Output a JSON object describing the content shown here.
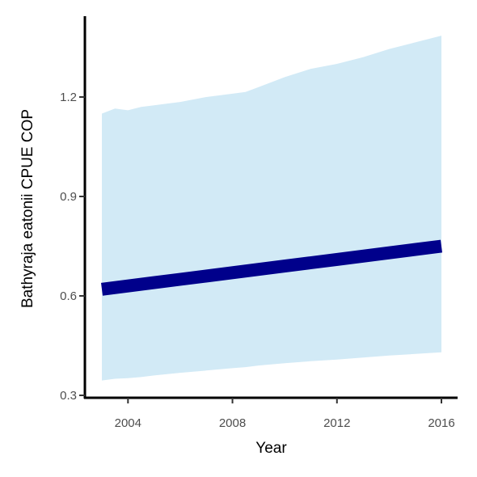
{
  "chart_data": {
    "type": "line",
    "xlabel": "Year",
    "ylabel": "Bathyraja eatonii  CPUE COP",
    "xlim": [
      2002.5,
      2016.5
    ],
    "ylim": [
      0.3,
      1.42
    ],
    "x_ticks": [
      2004,
      2008,
      2012,
      2016
    ],
    "x_tick_labels": [
      "2004",
      "2008",
      "2012",
      "2016"
    ],
    "y_ticks": [
      0.3,
      0.6,
      0.9,
      1.2
    ],
    "y_tick_labels": [
      "0.3",
      "0.6",
      "0.9",
      "1.2"
    ],
    "grid": false,
    "series": [
      {
        "type": "line",
        "color": "#00008b",
        "x": [
          2003,
          2004,
          2005,
          2006,
          2007,
          2008,
          2009,
          2010,
          2011,
          2012,
          2013,
          2014,
          2015,
          2016
        ],
        "values": [
          0.62,
          0.63,
          0.64,
          0.65,
          0.66,
          0.67,
          0.68,
          0.69,
          0.7,
          0.71,
          0.72,
          0.73,
          0.74,
          0.75
        ]
      },
      {
        "type": "ribbon",
        "color": "#d2eaf6",
        "x": [
          2003,
          2003.5,
          2004,
          2004.5,
          2005,
          2006,
          2007,
          2008,
          2008.5,
          2009,
          2010,
          2011,
          2012,
          2013,
          2014,
          2015,
          2016
        ],
        "upper": [
          1.15,
          1.165,
          1.16,
          1.17,
          1.175,
          1.185,
          1.2,
          1.21,
          1.215,
          1.23,
          1.26,
          1.285,
          1.3,
          1.32,
          1.345,
          1.365,
          1.385
        ],
        "lower": [
          0.345,
          0.35,
          0.352,
          0.355,
          0.36,
          0.368,
          0.375,
          0.382,
          0.385,
          0.39,
          0.397,
          0.403,
          0.408,
          0.414,
          0.42,
          0.425,
          0.43
        ]
      }
    ]
  }
}
